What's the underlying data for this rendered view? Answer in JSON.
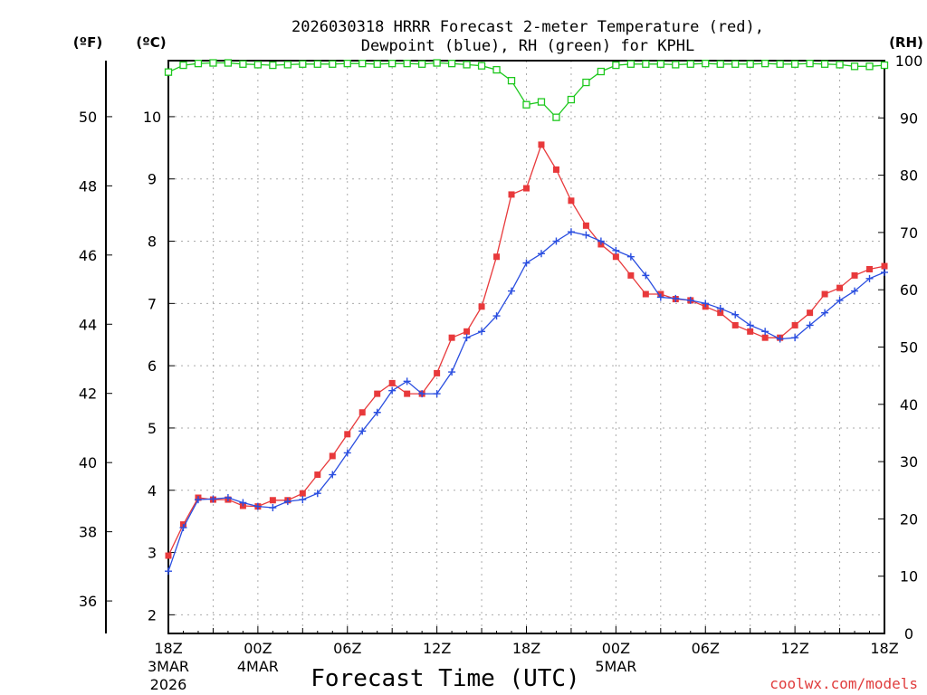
{
  "chart_data": {
    "type": "line",
    "title_line1": "2026030318 HRRR Forecast 2-meter Temperature (red),",
    "title_line2": "Dewpoint (blue), RH (green) for KPHL",
    "xlabel": "Forecast Time (UTC)",
    "credit": "coolwx.com/models",
    "left_outer_unit": "(ºF)",
    "left_inner_unit": "(ºC)",
    "right_unit": "(RH)",
    "x_range_hours": [
      0,
      48
    ],
    "celsius_range": [
      1.7,
      10.9
    ],
    "rh_range": [
      0,
      100
    ],
    "celsius_ticks": [
      "2",
      "3",
      "4",
      "5",
      "6",
      "7",
      "8",
      "9",
      "10"
    ],
    "fahrenheit_ticks": [
      "36",
      "38",
      "40",
      "42",
      "44",
      "46",
      "48",
      "50"
    ],
    "rh_ticks": [
      "0",
      "10",
      "20",
      "30",
      "40",
      "50",
      "60",
      "70",
      "80",
      "90",
      "100"
    ],
    "x_ticks": [
      {
        "hour": 0,
        "label": "18Z",
        "sub1": "3MAR",
        "sub2": "2026"
      },
      {
        "hour": 6,
        "label": "00Z",
        "sub1": "4MAR",
        "sub2": ""
      },
      {
        "hour": 12,
        "label": "06Z",
        "sub1": "",
        "sub2": ""
      },
      {
        "hour": 18,
        "label": "12Z",
        "sub1": "",
        "sub2": ""
      },
      {
        "hour": 24,
        "label": "18Z",
        "sub1": "",
        "sub2": ""
      },
      {
        "hour": 30,
        "label": "00Z",
        "sub1": "5MAR",
        "sub2": ""
      },
      {
        "hour": 36,
        "label": "06Z",
        "sub1": "",
        "sub2": ""
      },
      {
        "hour": 42,
        "label": "12Z",
        "sub1": "",
        "sub2": ""
      },
      {
        "hour": 48,
        "label": "18Z",
        "sub1": "",
        "sub2": ""
      }
    ],
    "series": [
      {
        "name": "Temperature",
        "color": "#e8393b",
        "marker": "square-filled",
        "units": "C",
        "values": [
          2.95,
          3.45,
          3.88,
          3.85,
          3.85,
          3.75,
          3.74,
          3.84,
          3.84,
          3.95,
          4.25,
          4.55,
          4.9,
          5.25,
          5.55,
          5.72,
          5.55,
          5.55,
          5.88,
          6.45,
          6.55,
          6.95,
          7.75,
          8.75,
          8.85,
          9.55,
          9.15,
          8.65,
          8.25,
          7.95,
          7.75,
          7.45,
          7.15,
          7.15,
          7.07,
          7.05,
          6.95,
          6.85,
          6.65,
          6.55,
          6.45,
          6.45,
          6.65,
          6.85,
          7.15,
          7.25,
          7.45,
          7.55,
          7.6
        ]
      },
      {
        "name": "Dewpoint",
        "color": "#2a4ee0",
        "marker": "plus",
        "units": "C",
        "values": [
          2.7,
          3.4,
          3.85,
          3.86,
          3.88,
          3.8,
          3.74,
          3.72,
          3.82,
          3.85,
          3.95,
          4.25,
          4.6,
          4.95,
          5.25,
          5.6,
          5.75,
          5.55,
          5.55,
          5.9,
          6.45,
          6.55,
          6.8,
          7.2,
          7.65,
          7.8,
          8.0,
          8.15,
          8.1,
          8.0,
          7.85,
          7.75,
          7.45,
          7.1,
          7.08,
          7.05,
          7.0,
          6.92,
          6.82,
          6.65,
          6.55,
          6.43,
          6.45,
          6.65,
          6.85,
          7.05,
          7.2,
          7.4,
          7.5
        ]
      },
      {
        "name": "RH",
        "color": "#1ec81e",
        "marker": "square-open",
        "units": "%",
        "values": [
          98,
          99.2,
          99.5,
          99.6,
          99.6,
          99.4,
          99.3,
          99.2,
          99.3,
          99.4,
          99.4,
          99.4,
          99.5,
          99.5,
          99.4,
          99.5,
          99.5,
          99.4,
          99.6,
          99.5,
          99.3,
          99.1,
          98.4,
          96.5,
          92.3,
          92.8,
          90.1,
          93.2,
          96.2,
          98.1,
          99.2,
          99.4,
          99.4,
          99.4,
          99.3,
          99.4,
          99.5,
          99.4,
          99.4,
          99.4,
          99.5,
          99.4,
          99.4,
          99.5,
          99.4,
          99.3,
          99.0,
          99.0,
          99.2
        ]
      }
    ]
  }
}
